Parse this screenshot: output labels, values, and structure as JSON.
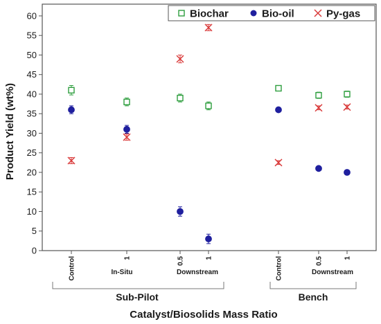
{
  "chart_data": {
    "type": "scatter",
    "title": "",
    "xlabel": "Catalyst/Biosolids Mass Ratio",
    "ylabel": "Product Yield (wt%)",
    "ylim": [
      0,
      63
    ],
    "yticks": [
      0,
      5,
      10,
      15,
      20,
      25,
      30,
      35,
      40,
      45,
      50,
      55,
      60
    ],
    "grid": false,
    "legend_position": "top-right",
    "categories": [
      "Control",
      "1",
      "0.5",
      "1",
      "Control",
      "0.5",
      "1"
    ],
    "sub_labels": [
      "In-Situ",
      "Downstream",
      "Downstream"
    ],
    "groups": [
      "Sub-Pilot",
      "Bench"
    ],
    "series": [
      {
        "name": "Biochar",
        "color": "#2e9e3e",
        "marker": "open-square",
        "values": [
          41,
          38,
          39,
          37,
          41.5,
          39.7,
          40
        ],
        "errors": [
          1.2,
          1.0,
          1.0,
          1.0,
          0.5,
          0.8,
          0.8
        ]
      },
      {
        "name": "Bio-oil",
        "color": "#1f1f9e",
        "marker": "filled-circle",
        "values": [
          36,
          31,
          10,
          3,
          36,
          21,
          20
        ],
        "errors": [
          1.0,
          1.0,
          1.2,
          1.2,
          0.4,
          0.4,
          0.4
        ]
      },
      {
        "name": "Py-gas",
        "color": "#d93a3a",
        "marker": "x",
        "values": [
          23,
          29,
          49,
          57,
          22.5,
          36.5,
          36.7
        ],
        "errors": [
          0.8,
          0.8,
          1.0,
          0.8,
          0.5,
          0.5,
          0.5
        ]
      }
    ]
  }
}
